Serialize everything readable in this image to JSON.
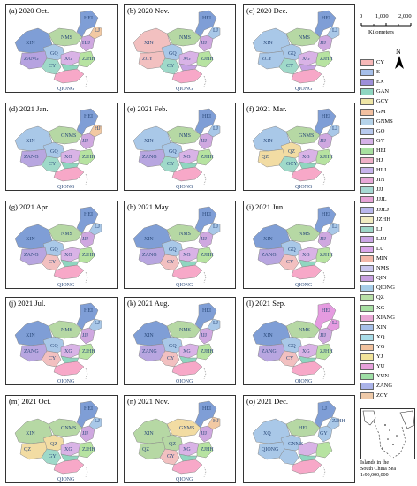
{
  "panels": [
    {
      "title": "(a) 2020 Oct.",
      "colors": [
        "#7f9ed6",
        "#a9c8e8",
        "#b6d8a4",
        "#7f9ed6",
        "#f2c9a3",
        "#cfa8e0",
        "#b6a2e0",
        "#9fd9c9",
        "#d9b3e6",
        "#b7e3a1",
        "#f7a8c8",
        "#8fd6c0"
      ],
      "labels": [
        "XIN",
        "GQ",
        "NMS",
        "HEI",
        "LJ",
        "HJJ",
        "ZANG",
        "CY",
        "XG",
        "ZJHH",
        "QIONG"
      ]
    },
    {
      "title": "(b) 2020 Nov.",
      "colors": [
        "#f2c0c0",
        "#a9c8e8",
        "#b6d8a4",
        "#7f9ed6",
        "#a9c8e8",
        "#cfa8e0",
        "#f2c0c0",
        "#9fd9c9",
        "#d9b3e6",
        "#b7e3a1",
        "#f7a8c8",
        "#c6a3e3"
      ],
      "labels": [
        "XIN",
        "GQ",
        "NMS",
        "HEI",
        "LJ",
        "JJJ",
        "ZCY",
        "CY",
        "XG",
        "ZJHH",
        "QIONG"
      ]
    },
    {
      "title": "(c) 2020 Dec.",
      "colors": [
        "#a9c8e8",
        "#a9c8e8",
        "#b6d8a4",
        "#7f9ed6",
        "#a9c8e8",
        "#cfa8e0",
        "#a9c8e8",
        "#9fd9c9",
        "#d9b3e6",
        "#b7e3a1",
        "#f7a8c8",
        "#c6a3e3"
      ],
      "labels": [
        "XIN",
        "GQ",
        "NMS",
        "HEI",
        "LJ",
        "JJJ",
        "ZCY",
        "CY",
        "XG",
        "ZJHH",
        "QIONG"
      ]
    },
    {
      "title": "(d) 2021 Jan.",
      "colors": [
        "#a9c8e8",
        "#a9c8e8",
        "#b6d8a4",
        "#7f9ed6",
        "#f2c9a3",
        "#cfa8e0",
        "#b8a6e0",
        "#9fd9c9",
        "#d9b3e6",
        "#b7e3a1",
        "#f7a8c8",
        "#8fd6c0"
      ],
      "labels": [
        "XIN",
        "GQ",
        "GNMS",
        "HEI",
        "HJ",
        "JJJ",
        "ZANG",
        "CY",
        "XG",
        "ZJHH",
        "QIONG"
      ]
    },
    {
      "title": "(e) 2021 Feb.",
      "colors": [
        "#a9c8e8",
        "#a9c8e8",
        "#b6d8a4",
        "#7f9ed6",
        "#a9c8e8",
        "#cfa8e0",
        "#b8a6e0",
        "#9fd9c9",
        "#d9b3e6",
        "#b7e3a1",
        "#f7a8c8",
        "#8fd6c0"
      ],
      "labels": [
        "XIN",
        "GQ",
        "NMS",
        "HEI",
        "LJ",
        "JJJ",
        "ZANG",
        "CY",
        "XG",
        "ZJHH",
        "QIONG"
      ]
    },
    {
      "title": "(f) 2021 Mar.",
      "colors": [
        "#a9c8e8",
        "#f2dca3",
        "#b6d8a4",
        "#7f9ed6",
        "#a9c8e8",
        "#cfa8e0",
        "#f2dca3",
        "#9fd9c9",
        "#d9b3e6",
        "#b7e3a1",
        "#f7a8c8",
        "#8fd6c0"
      ],
      "labels": [
        "XIN",
        "QZ",
        "GNMS",
        "HEI",
        "LJ",
        "JJJ",
        "QZ",
        "GCY",
        "XG",
        "ZJHH",
        "QIONG"
      ]
    },
    {
      "title": "(g) 2021 Apr.",
      "colors": [
        "#7f9ed6",
        "#a9c8e8",
        "#b6d8a4",
        "#7f9ed6",
        "#a9c8e8",
        "#cfa8e0",
        "#b8a6e0",
        "#f2c0c0",
        "#d9b3e6",
        "#b7e3a1",
        "#f7a8c8",
        "#8fd6c0"
      ],
      "labels": [
        "XIN",
        "GQ",
        "NMS",
        "HEI",
        "LJ",
        "JJJ",
        "ZANG",
        "CY",
        "XG",
        "ZJHH",
        "QIONG"
      ]
    },
    {
      "title": "(h) 2021 May.",
      "colors": [
        "#7f9ed6",
        "#a9c8e8",
        "#b6d8a4",
        "#7f9ed6",
        "#a9c8e8",
        "#cfa8e0",
        "#b8a6e0",
        "#f2c0c0",
        "#d9b3e6",
        "#b7e3a1",
        "#f7a8c8",
        "#8fd6c0"
      ],
      "labels": [
        "XIN",
        "GQ",
        "NMS",
        "HEI",
        "LJ",
        "JJJ",
        "ZANG",
        "CY",
        "XG",
        "ZJHH",
        "QIONG"
      ]
    },
    {
      "title": "(i) 2021 Jun.",
      "colors": [
        "#7f9ed6",
        "#a9c8e8",
        "#b6d8a4",
        "#7f9ed6",
        "#a9c8e8",
        "#cfa8e0",
        "#b8a6e0",
        "#f2c0c0",
        "#d9b3e6",
        "#b7e3a1",
        "#f7a8c8",
        "#8fd6c0"
      ],
      "labels": [
        "XIN",
        "GQ",
        "NMS",
        "HEI",
        "LJ",
        "JJJ",
        "ZANG",
        "CY",
        "XG",
        "ZJHH",
        "QIONG"
      ]
    },
    {
      "title": "(j) 2021 Jul.",
      "colors": [
        "#7f9ed6",
        "#a9c8e8",
        "#b6d8a4",
        "#7f9ed6",
        "#a9c8e8",
        "#cfa8e0",
        "#b8a6e0",
        "#f2c0c0",
        "#d9b3e6",
        "#b7e3a1",
        "#f7a8c8",
        "#8fd6c0"
      ],
      "labels": [
        "XIN",
        "GQ",
        "NMS",
        "HEI",
        "LJ",
        "JJJ",
        "ZANG",
        "CY",
        "XG",
        "ZJHH",
        "QIONG"
      ]
    },
    {
      "title": "(k) 2021 Aug.",
      "colors": [
        "#7f9ed6",
        "#a9c8e8",
        "#b6d8a4",
        "#7f9ed6",
        "#a9c8e8",
        "#cfa8e0",
        "#b8a6e0",
        "#f2c0c0",
        "#d9b3e6",
        "#b7e3a1",
        "#f7a8c8",
        "#8fd6c0"
      ],
      "labels": [
        "XIN",
        "GQ",
        "NMS",
        "HEI",
        "LJ",
        "JJJ",
        "ZANG",
        "CY",
        "XG",
        "ZJHH",
        "QIONG"
      ]
    },
    {
      "title": "(l) 2021 Sep.",
      "colors": [
        "#7f9ed6",
        "#a9c8e8",
        "#b6d8a4",
        "#e59be0",
        "#e59be0",
        "#cfa8e0",
        "#b8a6e0",
        "#f2c0c0",
        "#d9b3e6",
        "#b7e3a1",
        "#f7a8c8",
        "#8fd6c0"
      ],
      "labels": [
        "XIN",
        "GQ",
        "NMS",
        "HEI",
        "LJ",
        "JJJ",
        "ZANG",
        "CY",
        "XG",
        "ZJHH",
        "QIONG"
      ]
    },
    {
      "title": "(m) 2021 Oct.",
      "colors": [
        "#b6d8a4",
        "#f2dca3",
        "#b6d8a4",
        "#7f9ed6",
        "#a9c8e8",
        "#cfa8e0",
        "#f2dca3",
        "#9fd9c9",
        "#d9b3e6",
        "#b7e3a1",
        "#f7a8c8",
        "#8fd6c0"
      ],
      "labels": [
        "XIN",
        "QZ",
        "GNMS",
        "HEI",
        "LJ",
        "JJJ",
        "QZ",
        "GY",
        "XG",
        "ZJHH",
        "QIONG"
      ]
    },
    {
      "title": "(n) 2021 Nov.",
      "colors": [
        "#b6d8a4",
        "#b6d8a4",
        "#f2dca3",
        "#7f9ed6",
        "#f2c9a3",
        "#cfa8e0",
        "#b6d8a4",
        "#f2c0c0",
        "#d9b3e6",
        "#b7e3a1",
        "#f7a8c8",
        "#8fd6c0"
      ],
      "labels": [
        "XIN",
        "QZ",
        "GNMS",
        "HEI",
        "HJ",
        "JJJ",
        "QZ",
        "GY",
        "XG",
        "ZJHH",
        "QIONG"
      ]
    },
    {
      "title": "(o) 2021 Dec.",
      "colors": [
        "#a9c8e8",
        "#a9c8e8",
        "#b6d8a4",
        "#7f9ed6",
        "#a9c8e8",
        "#a9c8e8",
        "#a9c8e8",
        "#a9c8e8",
        "#d9b3e6",
        "#b7e3a1",
        "#f7a8c8",
        "#8fd6c0"
      ],
      "labels": [
        "XQ",
        "GNMS",
        "HEI",
        "LJ",
        "ZJHH",
        "GY",
        "QIONG"
      ]
    }
  ],
  "scale": {
    "ticks": [
      "0",
      "1,000",
      "2,000"
    ],
    "unit": "Kilometers"
  },
  "north": {
    "letter": "N"
  },
  "legend": [
    {
      "label": "CY",
      "color": "#f7b8b8"
    },
    {
      "label": "E",
      "color": "#a7c0ea"
    },
    {
      "label": "EX",
      "color": "#9d8fd9"
    },
    {
      "label": "GAN",
      "color": "#8fd6c0"
    },
    {
      "label": "GCY",
      "color": "#efe6a6"
    },
    {
      "label": "GM",
      "color": "#f2c0a0"
    },
    {
      "label": "GNMS",
      "color": "#b5d3ea"
    },
    {
      "label": "GQ",
      "color": "#b7c9ee"
    },
    {
      "label": "GY",
      "color": "#d6b2e8"
    },
    {
      "label": "HEI",
      "color": "#a8e0a0"
    },
    {
      "label": "HJ",
      "color": "#efb0c8"
    },
    {
      "label": "HLJ",
      "color": "#c7b3ec"
    },
    {
      "label": "JIN",
      "color": "#e8a8d8"
    },
    {
      "label": "JJJ",
      "color": "#a6d9d3"
    },
    {
      "label": "JJJL",
      "color": "#e6a3d6"
    },
    {
      "label": "JJJLJ",
      "color": "#b9b7ec"
    },
    {
      "label": "JZHH",
      "color": "#f1ecc0"
    },
    {
      "label": "LJ",
      "color": "#9ed8c8"
    },
    {
      "label": "LJJJ",
      "color": "#cba6e6"
    },
    {
      "label": "LU",
      "color": "#d9a6ea"
    },
    {
      "label": "MIN",
      "color": "#f2b7a8"
    },
    {
      "label": "NMS",
      "color": "#c9c6ee"
    },
    {
      "label": "QIN",
      "color": "#c8a0e0"
    },
    {
      "label": "QIONG",
      "color": "#a6cde8"
    },
    {
      "label": "QZ",
      "color": "#b9e0a8"
    },
    {
      "label": "XG",
      "color": "#a7e0a3"
    },
    {
      "label": "XIANG",
      "color": "#e9a7d4"
    },
    {
      "label": "XIN",
      "color": "#a6bfe8"
    },
    {
      "label": "XQ",
      "color": "#a9dde8"
    },
    {
      "label": "YG",
      "color": "#f3c29e"
    },
    {
      "label": "YJ",
      "color": "#f2e49a"
    },
    {
      "label": "YU",
      "color": "#e6a0dc"
    },
    {
      "label": "YUN",
      "color": "#9fe0a6"
    },
    {
      "label": "ZANG",
      "color": "#aab3e8"
    },
    {
      "label": "ZCY",
      "color": "#eec9a8"
    }
  ],
  "inset": {
    "caption_lines": [
      "Islands   in   the",
      "South China Sea",
      "1:90,000,000"
    ]
  }
}
